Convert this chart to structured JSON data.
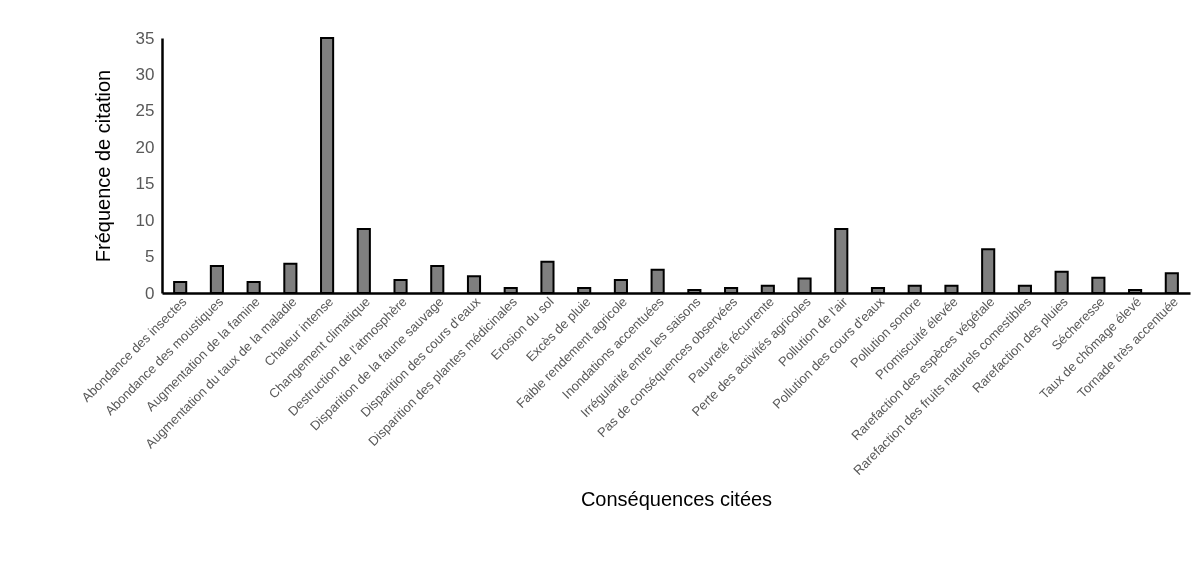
{
  "chart_data": {
    "type": "bar",
    "xlabel": "Conséquences citées",
    "ylabel": "Fréquence de citation",
    "categories": [
      "Abondance des insectes",
      "Abondance des moustiques",
      "Augmentation de la famine",
      "Augmentation du taux de la maladie",
      "Chaleur intense",
      "Changement climatique",
      "Destruction de l'atmosphère",
      "Disparition de la faune sauvage",
      "Disparition des cours d'eaux",
      "Disparition des plantes médicinales",
      "Erosion du sol",
      "Excès de pluie",
      "Faible rendement agricole",
      "Inondations accentuées",
      "Irrégularité entre les saisons",
      "Pas de conséquences observées",
      "Pauvreté récurrente",
      "Perte des activités agricoles",
      "Pollution de l'air",
      "Pollution des cours d'eaux",
      "Pollution sonore",
      "Promiscuité élevée",
      "Rarefaction des espèces végétale",
      "Rarefaction des fruits naturels comestibles",
      "Rarefaction des pluies",
      "Sécheresse",
      "Taux de chômage élevé",
      "Tornade très accentuée"
    ],
    "values": [
      1.5,
      3.7,
      1.5,
      4.0,
      35,
      8.8,
      1.8,
      3.7,
      2.3,
      0.7,
      4.3,
      0.7,
      1.8,
      3.2,
      0.4,
      0.7,
      1.0,
      2.0,
      8.8,
      0.7,
      1.0,
      1.0,
      6.0,
      1.0,
      2.9,
      2.1,
      0.4,
      2.7
    ],
    "color": "#7f7f7f",
    "ylim": [
      0,
      35
    ],
    "yticks": [
      0,
      5,
      10,
      15,
      20,
      25,
      30,
      35
    ],
    "grid": false
  }
}
